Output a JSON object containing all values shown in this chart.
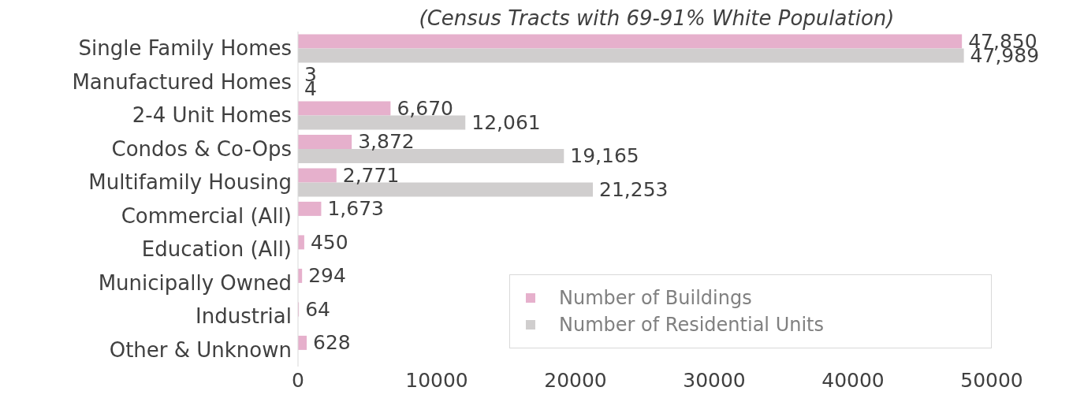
{
  "chart_data": {
    "type": "bar",
    "orientation": "horizontal",
    "subtitle": "(Census Tracts with 69-91% White Population)",
    "categories": [
      "Single Family Homes",
      "Manufactured Homes",
      "2-4 Unit Homes",
      "Condos & Co-Ops",
      "Multifamily Housing",
      "Commercial (All)",
      "Education (All)",
      "Municipally Owned",
      "Industrial",
      "Other & Unknown"
    ],
    "series": [
      {
        "name": "Number of Buildings",
        "color": "#e6b0cc",
        "values": [
          47850,
          3,
          6670,
          3872,
          2771,
          1673,
          450,
          294,
          64,
          628
        ],
        "value_labels": [
          "47,850",
          "3",
          "6,670",
          "3,872",
          "2,771",
          "1,673",
          "450",
          "294",
          "64",
          "628"
        ]
      },
      {
        "name": "Number of Residential Units",
        "color": "#d0cece",
        "values": [
          47989,
          4,
          12061,
          19165,
          21253,
          null,
          null,
          null,
          null,
          null
        ],
        "value_labels": [
          "47,989",
          "4",
          "12,061",
          "19,165",
          "21,253",
          null,
          null,
          null,
          null,
          null
        ]
      }
    ],
    "xlim": [
      0,
      50000
    ],
    "xticks": [
      0,
      10000,
      20000,
      30000,
      40000,
      50000
    ],
    "grid": false,
    "legend": "bottom right"
  }
}
